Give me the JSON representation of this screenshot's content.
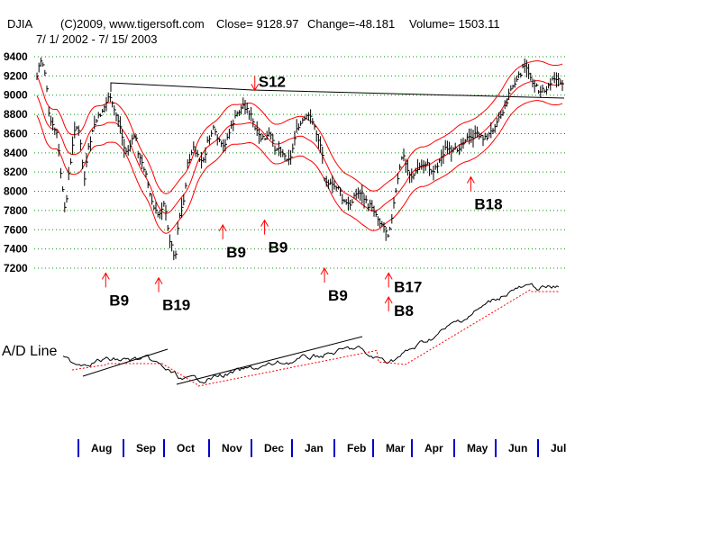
{
  "header": {
    "symbol": "DJIA",
    "source": "(C)2009, www.tigersoft.com",
    "close": "Close=  9128.97",
    "change": "Change=-48.181",
    "volume": "Volume= 1503.11",
    "date_range": "7/ 1/ 2002 - 7/ 15/ 2003"
  },
  "colors": {
    "price_bars": "#000000",
    "bands": "#ff0000",
    "signals": "#ff0000",
    "grid": "#009900",
    "trendlines": "#000000",
    "axis_ticks": "#0000cc",
    "ad_moving_average": "#ff0000"
  },
  "chart_data": {
    "type": "line",
    "title": "DJIA",
    "ylim": [
      7100,
      9450
    ],
    "y_ticks": [
      9400,
      9200,
      9000,
      8800,
      8600,
      8400,
      8200,
      8000,
      7800,
      7600,
      7400,
      7200
    ],
    "grid": true,
    "month_labels": [
      "Aug",
      "Sep",
      "Oct",
      "Nov",
      "Dec",
      "Jan",
      "Feb",
      "Mar",
      "Apr",
      "May",
      "Jun",
      "Jul"
    ],
    "x_start": "2002-07-01",
    "x_end": "2003-07-15",
    "price_series": [
      [
        "2002-07-01",
        9150
      ],
      [
        "2002-07-03",
        9300
      ],
      [
        "2002-07-05",
        9380
      ],
      [
        "2002-07-08",
        9200
      ],
      [
        "2002-07-10",
        8800
      ],
      [
        "2002-07-12",
        8700
      ],
      [
        "2002-07-16",
        8600
      ],
      [
        "2002-07-19",
        8150
      ],
      [
        "2002-07-22",
        7750
      ],
      [
        "2002-07-24",
        8150
      ],
      [
        "2002-07-26",
        8300
      ],
      [
        "2002-07-29",
        8700
      ],
      [
        "2002-08-01",
        8600
      ],
      [
        "2002-08-05",
        8100
      ],
      [
        "2002-08-07",
        8400
      ],
      [
        "2002-08-12",
        8700
      ],
      [
        "2002-08-16",
        8800
      ],
      [
        "2002-08-20",
        8900
      ],
      [
        "2002-08-22",
        9000
      ],
      [
        "2002-08-26",
        8850
      ],
      [
        "2002-08-30",
        8700
      ],
      [
        "2002-09-03",
        8400
      ],
      [
        "2002-09-06",
        8450
      ],
      [
        "2002-09-10",
        8600
      ],
      [
        "2002-09-13",
        8350
      ],
      [
        "2002-09-18",
        8200
      ],
      [
        "2002-09-20",
        8000
      ],
      [
        "2002-09-24",
        7800
      ],
      [
        "2002-09-27",
        7750
      ],
      [
        "2002-10-01",
        7900
      ],
      [
        "2002-10-04",
        7550
      ],
      [
        "2002-10-09",
        7300
      ],
      [
        "2002-10-11",
        7700
      ],
      [
        "2002-10-15",
        7900
      ],
      [
        "2002-10-18",
        8300
      ],
      [
        "2002-10-22",
        8450
      ],
      [
        "2002-10-25",
        8350
      ],
      [
        "2002-10-29",
        8300
      ],
      [
        "2002-11-01",
        8500
      ],
      [
        "2002-11-05",
        8650
      ],
      [
        "2002-11-08",
        8550
      ],
      [
        "2002-11-12",
        8450
      ],
      [
        "2002-11-15",
        8550
      ],
      [
        "2002-11-19",
        8700
      ],
      [
        "2002-11-22",
        8800
      ],
      [
        "2002-11-27",
        8900
      ],
      [
        "2002-12-02",
        8800
      ],
      [
        "2002-12-05",
        8650
      ],
      [
        "2002-12-09",
        8550
      ],
      [
        "2002-12-12",
        8550
      ],
      [
        "2002-12-16",
        8600
      ],
      [
        "2002-12-19",
        8450
      ],
      [
        "2002-12-23",
        8450
      ],
      [
        "2002-12-27",
        8350
      ],
      [
        "2002-12-31",
        8350
      ],
      [
        "2003-01-03",
        8600
      ],
      [
        "2003-01-07",
        8700
      ],
      [
        "2003-01-10",
        8750
      ],
      [
        "2003-01-14",
        8800
      ],
      [
        "2003-01-17",
        8650
      ],
      [
        "2003-01-22",
        8450
      ],
      [
        "2003-01-24",
        8150
      ],
      [
        "2003-01-29",
        8050
      ],
      [
        "2003-02-03",
        8050
      ],
      [
        "2003-02-06",
        7900
      ],
      [
        "2003-02-11",
        7850
      ],
      [
        "2003-02-14",
        7950
      ],
      [
        "2003-02-19",
        8000
      ],
      [
        "2003-02-24",
        7850
      ],
      [
        "2003-02-27",
        7850
      ],
      [
        "2003-03-04",
        7700
      ],
      [
        "2003-03-07",
        7650
      ],
      [
        "2003-03-11",
        7550
      ],
      [
        "2003-03-14",
        7800
      ],
      [
        "2003-03-18",
        8150
      ],
      [
        "2003-03-21",
        8400
      ],
      [
        "2003-03-25",
        8200
      ],
      [
        "2003-03-28",
        8150
      ],
      [
        "2003-04-02",
        8250
      ],
      [
        "2003-04-07",
        8300
      ],
      [
        "2003-04-11",
        8200
      ],
      [
        "2003-04-16",
        8300
      ],
      [
        "2003-04-21",
        8450
      ],
      [
        "2003-04-25",
        8400
      ],
      [
        "2003-04-30",
        8450
      ],
      [
        "2003-05-05",
        8550
      ],
      [
        "2003-05-09",
        8550
      ],
      [
        "2003-05-14",
        8600
      ],
      [
        "2003-05-19",
        8550
      ],
      [
        "2003-05-23",
        8600
      ],
      [
        "2003-05-28",
        8750
      ],
      [
        "2003-06-02",
        8850
      ],
      [
        "2003-06-06",
        9050
      ],
      [
        "2003-06-11",
        9150
      ],
      [
        "2003-06-16",
        9300
      ],
      [
        "2003-06-19",
        9250
      ],
      [
        "2003-06-24",
        9100
      ],
      [
        "2003-06-27",
        9050
      ],
      [
        "2003-07-02",
        9050
      ],
      [
        "2003-07-07",
        9200
      ],
      [
        "2003-07-10",
        9150
      ],
      [
        "2003-07-15",
        9130
      ]
    ],
    "ad_line_label": "A/D Line",
    "signals": [
      {
        "label": "S12",
        "date": "2002-12-05",
        "level": 9050,
        "direction": "down",
        "label_side": "right"
      },
      {
        "label": "B9",
        "date": "2002-08-20",
        "level": 7150,
        "direction": "up",
        "label_side": "below"
      },
      {
        "label": "B19",
        "date": "2002-09-27",
        "level": 7100,
        "direction": "up",
        "label_side": "below"
      },
      {
        "label": "B9",
        "date": "2002-11-12",
        "level": 7650,
        "direction": "up",
        "label_side": "below"
      },
      {
        "label": "B9",
        "date": "2002-12-12",
        "level": 7700,
        "direction": "up",
        "label_side": "below"
      },
      {
        "label": "B9",
        "date": "2003-01-24",
        "level": 7200,
        "direction": "up",
        "label_side": "below"
      },
      {
        "label": "B17",
        "date": "2003-03-11",
        "level": 7150,
        "direction": "up",
        "label_side": "right"
      },
      {
        "label": "B8",
        "date": "2003-03-11",
        "level": 6900,
        "direction": "up",
        "label_side": "right"
      },
      {
        "label": "B18",
        "date": "2003-05-09",
        "level": 8150,
        "direction": "up",
        "label_side": "below"
      }
    ]
  }
}
